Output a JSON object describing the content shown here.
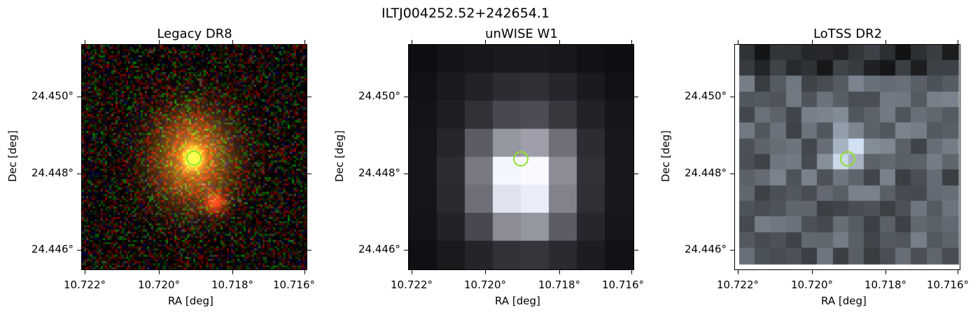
{
  "figure": {
    "title": "ILTJ004252.52+242654.1"
  },
  "panels": [
    {
      "id": "legacy",
      "title": "Legacy DR8",
      "xlabel": "RA [deg]",
      "ylabel": "Dec [deg]",
      "xticks": [
        "10.722°",
        "10.720°",
        "10.718°",
        "10.716°"
      ],
      "yticks": [
        "24.450°",
        "24.448°",
        "24.446°"
      ],
      "marker_color": "#8fe02a"
    },
    {
      "id": "unwise",
      "title": "unWISE W1",
      "xlabel": "RA [deg]",
      "ylabel": "Dec [deg]",
      "xticks": [
        "10.722°",
        "10.720°",
        "10.718°",
        "10.716°"
      ],
      "yticks": [
        "24.450°",
        "24.448°",
        "24.446°"
      ],
      "marker_color": "#8fe02a"
    },
    {
      "id": "lotss",
      "title": "LoTSS DR2",
      "xlabel": "RA [deg]",
      "ylabel": "Dec [deg]",
      "xticks": [
        "10.722°",
        "10.720°",
        "10.718°",
        "10.716°"
      ],
      "yticks": [
        "24.450°",
        "24.448°",
        "24.446°"
      ],
      "marker_color": "#8fe02a"
    }
  ]
}
